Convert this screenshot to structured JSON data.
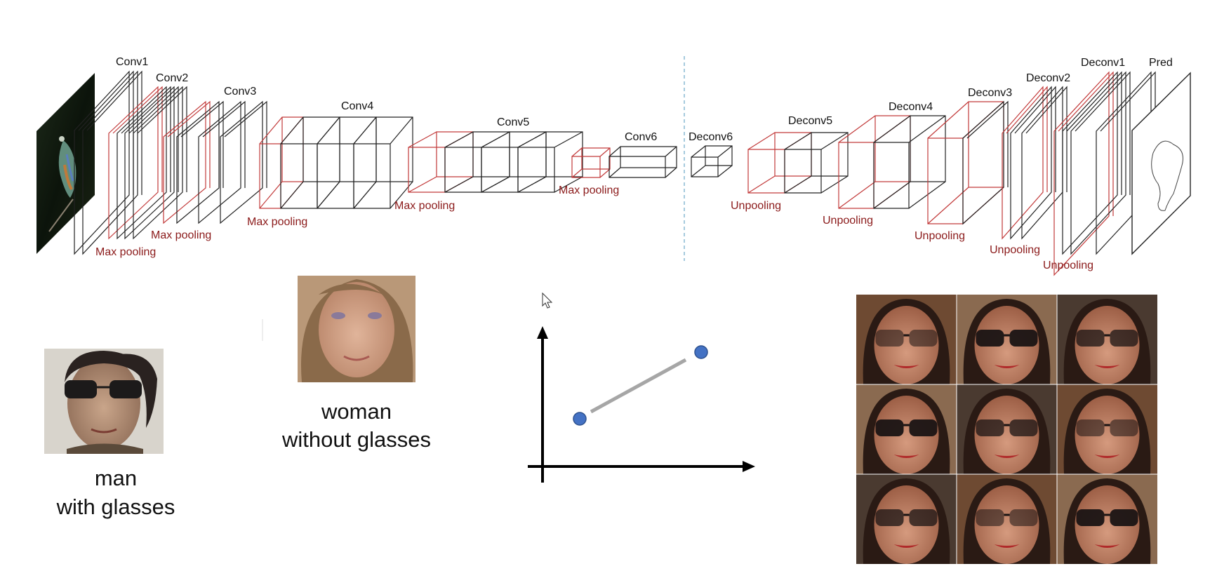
{
  "network": {
    "conv_labels": [
      "Conv1",
      "Conv2",
      "Conv3",
      "Conv4",
      "Conv5",
      "Conv6"
    ],
    "deconv_labels": [
      "Deconv6",
      "Deconv5",
      "Deconv4",
      "Deconv3",
      "Deconv2",
      "Deconv1"
    ],
    "pred_label": "Pred",
    "pooling_label": "Max pooling",
    "unpooling_label": "Unpooling"
  },
  "faces": {
    "man_caption_line1": "man",
    "man_caption_line2": "with glasses",
    "woman_caption_line1": "woman",
    "woman_caption_line2": "without glasses"
  },
  "plot": {
    "point_color": "#4472c4",
    "line_color": "#a6a6a6"
  },
  "colors": {
    "pooling": "#c23a3a",
    "layer": "#222222",
    "divider": "#6aa8c8"
  },
  "icons": {
    "cursor": "mouse-pointer-icon"
  }
}
